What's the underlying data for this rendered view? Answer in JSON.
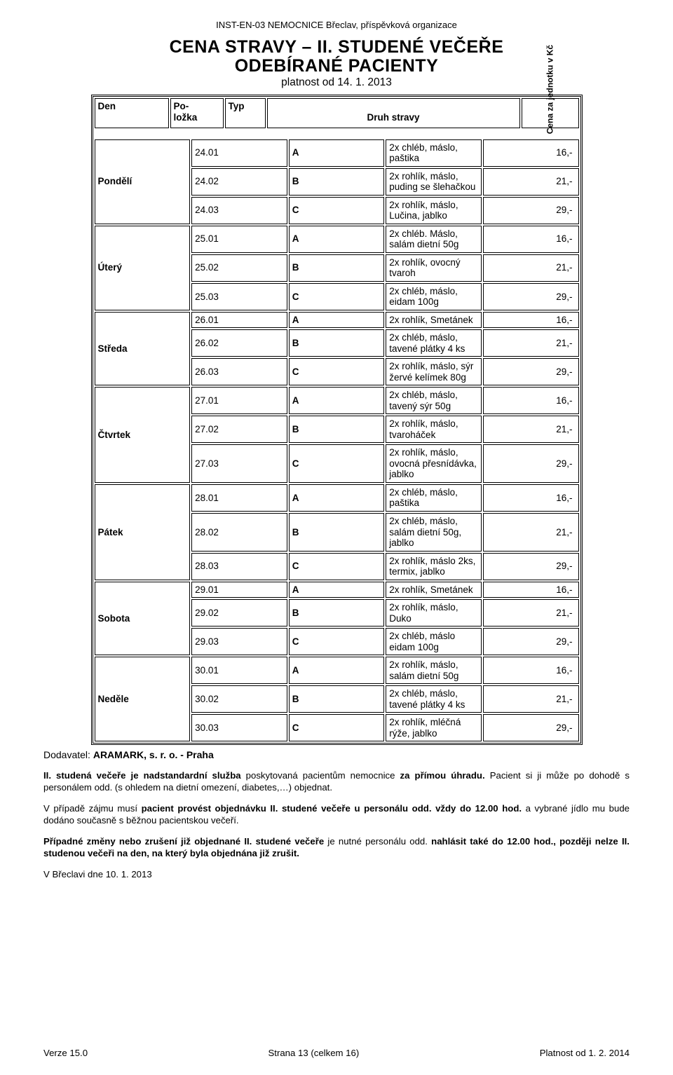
{
  "header": "INST-EN-03 NEMOCNICE Břeclav, příspěvková organizace",
  "title1": "CENA STRAVY – II. STUDENÉ VEČEŘE",
  "title2": "ODEBÍRANÉ PACIENTY",
  "subtitle": "platnost od 14. 1. 2013",
  "columns": {
    "day": "Den",
    "item": "Po-\nložka",
    "type": "Typ",
    "food": "Druh stravy",
    "price": "Cena za jednotku v Kč"
  },
  "days": [
    {
      "name": "Pondělí",
      "rows": [
        {
          "item": "24.01",
          "type": "A",
          "food": "2x chléb, máslo, paštika",
          "price": "16,-"
        },
        {
          "item": "24.02",
          "type": "B",
          "food": "2x rohlík, máslo, puding se šlehačkou",
          "price": "21,-"
        },
        {
          "item": "24.03",
          "type": "C",
          "food": "2x rohlík, máslo, Lučina, jablko",
          "price": "29,-"
        }
      ]
    },
    {
      "name": "Úterý",
      "rows": [
        {
          "item": "25.01",
          "type": "A",
          "food": "2x chléb. Máslo, salám dietní 50g",
          "price": "16,-"
        },
        {
          "item": "25.02",
          "type": "B",
          "food": "2x rohlík, ovocný tvaroh",
          "price": "21,-"
        },
        {
          "item": "25.03",
          "type": "C",
          "food": "2x chléb, máslo, eidam 100g",
          "price": "29,-"
        }
      ]
    },
    {
      "name": "Středa",
      "rows": [
        {
          "item": "26.01",
          "type": "A",
          "food": "2x rohlík, Smetánek",
          "price": "16,-"
        },
        {
          "item": "26.02",
          "type": "B",
          "food": "2x chléb, máslo, tavené plátky 4 ks",
          "price": "21,-"
        },
        {
          "item": "26.03",
          "type": "C",
          "food": "2x rohlík, máslo, sýr žervé kelímek 80g",
          "price": "29,-"
        }
      ]
    },
    {
      "name": "Čtvrtek",
      "rows": [
        {
          "item": "27.01",
          "type": "A",
          "food": "2x chléb, máslo, tavený sýr 50g",
          "price": "16,-"
        },
        {
          "item": "27.02",
          "type": "B",
          "food": "2x rohlík, máslo, tvaroháček",
          "price": "21,-"
        },
        {
          "item": "27.03",
          "type": "C",
          "food": "2x rohlík, máslo, ovocná přesnídávka, jablko",
          "price": "29,-"
        }
      ]
    },
    {
      "name": "Pátek",
      "rows": [
        {
          "item": "28.01",
          "type": "A",
          "food": "2x chléb, máslo, paštika",
          "price": "16,-"
        },
        {
          "item": "28.02",
          "type": "B",
          "food": "2x chléb, máslo, salám dietní 50g, jablko",
          "price": "21,-"
        },
        {
          "item": "28.03",
          "type": "C",
          "food": "2x rohlík, máslo 2ks, termix, jablko",
          "price": "29,-"
        }
      ]
    },
    {
      "name": "Sobota",
      "rows": [
        {
          "item": "29.01",
          "type": "A",
          "food": "2x rohlík, Smetánek",
          "price": "16,-"
        },
        {
          "item": "29.02",
          "type": "B",
          "food": "2x rohlík, máslo, Duko",
          "price": "21,-"
        },
        {
          "item": "29.03",
          "type": "C",
          "food": "2x chléb, máslo eidam 100g",
          "price": "29,-"
        }
      ]
    },
    {
      "name": "Neděle",
      "rows": [
        {
          "item": "30.01",
          "type": "A",
          "food": "2x rohlík, máslo, salám dietní 50g",
          "price": "16,-"
        },
        {
          "item": "30.02",
          "type": "B",
          "food": "2x chléb, máslo, tavené plátky 4 ks",
          "price": "21,-"
        },
        {
          "item": "30.03",
          "type": "C",
          "food": "2x rohlík, mléčná rýže, jablko",
          "price": "29,-"
        }
      ]
    }
  ],
  "supplier_label": "Dodavatel: ",
  "supplier_name": "ARAMARK, s. r. o. - Praha",
  "para1_a": "II. studená večeře je nadstandardní služba",
  "para1_b": " poskytovaná pacientům nemocnice ",
  "para1_c": "za přímou úhradu.",
  "para1_d": " Pacient si ji může po dohodě s personálem odd. (s ohledem na dietní omezení, diabetes,…) objednat.",
  "para2_a": "V případě zájmu musí ",
  "para2_b": "pacient provést objednávku II. studené večeře u personálu odd. vždy do 12.00 hod.",
  "para2_c": " a vybrané jídlo mu bude dodáno současně s běžnou pacientskou večeří.",
  "para3_a": "Případné změny nebo zrušení již objednané II. studené večeře",
  "para3_b": "  je nutné personálu odd. ",
  "para3_c": "nahlásit také do 12.00 hod., později nelze II. studenou večeři na den, na který byla objednána již zrušit.",
  "date_line": "V Břeclavi dne 10. 1. 2013",
  "footer": {
    "left": "Verze 15.0",
    "center": "Strana 13 (celkem 16)",
    "right": "Platnost od 1. 2. 2014"
  }
}
